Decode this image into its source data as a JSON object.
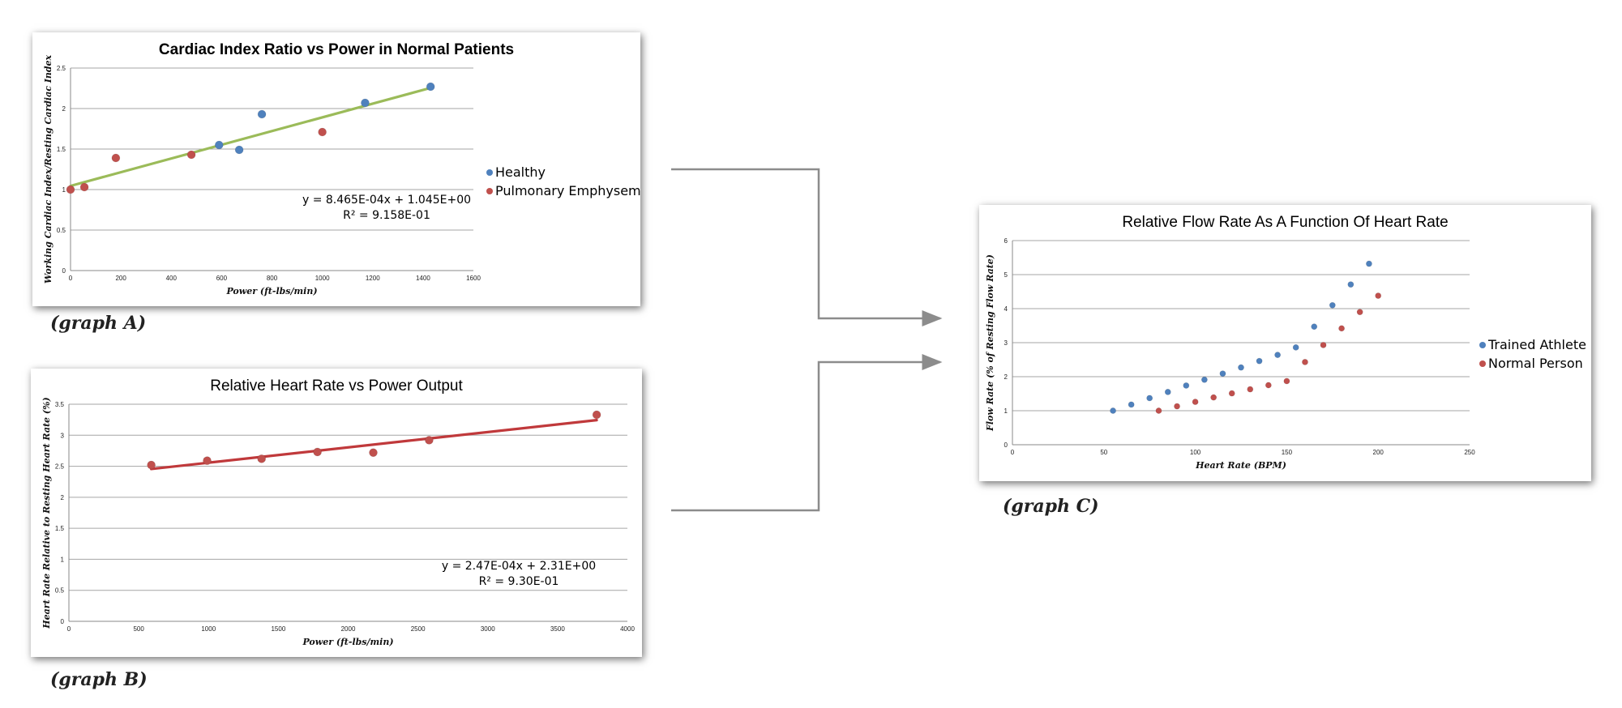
{
  "captions": {
    "a": "(graph A)",
    "b": "(graph B)",
    "c": "(graph C)"
  },
  "colors": {
    "blue": "#4f81bd",
    "red": "#c0504d",
    "green": "#9bbb59",
    "darkred": "#c0393b",
    "grid": "#a6a6a6",
    "arrow": "#8c8c8c"
  },
  "chart_data": [
    {
      "id": "graph-a",
      "type": "scatter",
      "title": "Cardiac Index Ratio vs Power in Normal Patients",
      "xlabel": "Power (ft-lbs/min)",
      "ylabel": "Working Cardiac Index/Resting Cardiac Index",
      "xlim": [
        0,
        1600
      ],
      "ylim": [
        0,
        2.5
      ],
      "xticks": [
        0,
        200,
        400,
        600,
        800,
        1000,
        1200,
        1400,
        1600
      ],
      "yticks": [
        0,
        0.5,
        1,
        1.5,
        2,
        2.5
      ],
      "grid": true,
      "legend": "right",
      "series": [
        {
          "name": "Healthy",
          "color": "#4f81bd",
          "x": [
            590,
            670,
            760,
            1170,
            1430
          ],
          "y": [
            1.55,
            1.49,
            1.93,
            2.07,
            2.27
          ]
        },
        {
          "name": "Pulmonary Emphysema",
          "color": "#c0504d",
          "x": [
            0,
            55,
            180,
            480,
            1000
          ],
          "y": [
            1.0,
            1.03,
            1.39,
            1.43,
            1.71
          ]
        }
      ],
      "trendline": {
        "color": "#9bbb59",
        "x": [
          0,
          1430
        ],
        "y": [
          1.045,
          2.255
        ]
      },
      "equation": [
        "y = 8.465E-04x + 1.045E+00",
        "R² = 9.158E-01"
      ]
    },
    {
      "id": "graph-b",
      "type": "scatter",
      "title": "Relative Heart Rate vs Power Output",
      "xlabel": "Power (ft-lbs/min)",
      "ylabel": "Heart Rate Relative to Resting Heart Rate (%)",
      "xlim": [
        0,
        4000
      ],
      "ylim": [
        0,
        3.5
      ],
      "xticks": [
        0,
        500,
        1000,
        1500,
        2000,
        2500,
        3000,
        3500,
        4000
      ],
      "yticks": [
        0,
        0.5,
        1,
        1.5,
        2,
        2.5,
        3,
        3.5
      ],
      "grid": true,
      "series": [
        {
          "name": "",
          "color": "#c0504d",
          "x": [
            590,
            990,
            1380,
            1780,
            2180,
            2580,
            3780
          ],
          "y": [
            2.52,
            2.59,
            2.62,
            2.73,
            2.72,
            2.92,
            3.33
          ]
        }
      ],
      "trendline": {
        "color": "#c0393b",
        "x": [
          590,
          3780
        ],
        "y": [
          2.456,
          3.244
        ]
      },
      "equation": [
        "y = 2.47E-04x + 2.31E+00",
        "R² = 9.30E-01"
      ]
    },
    {
      "id": "graph-c",
      "type": "scatter",
      "title": "Relative Flow Rate As A Function Of Heart Rate",
      "xlabel": "Heart Rate (BPM)",
      "ylabel": "Flow Rate (% of Resting Flow Rate)",
      "xlim": [
        0,
        250
      ],
      "ylim": [
        0,
        6
      ],
      "xticks": [
        0,
        50,
        100,
        150,
        200,
        250
      ],
      "yticks": [
        0,
        1,
        2,
        3,
        4,
        5,
        6
      ],
      "grid": true,
      "legend": "right",
      "series": [
        {
          "name": "Trained Athlete",
          "color": "#4f81bd",
          "x": [
            55,
            65,
            75,
            85,
            95,
            105,
            115,
            125,
            135,
            145,
            155,
            165,
            175,
            185,
            195
          ],
          "y": [
            1.0,
            1.18,
            1.37,
            1.55,
            1.74,
            1.91,
            2.09,
            2.27,
            2.46,
            2.64,
            2.86,
            3.47,
            4.1,
            4.71,
            5.32
          ]
        },
        {
          "name": "Normal Person",
          "color": "#c0504d",
          "x": [
            80,
            90,
            100,
            110,
            120,
            130,
            140,
            150,
            160,
            170,
            180,
            190,
            200
          ],
          "y": [
            1.0,
            1.13,
            1.26,
            1.39,
            1.51,
            1.63,
            1.75,
            1.87,
            2.43,
            2.93,
            3.42,
            3.9,
            4.38
          ]
        }
      ]
    }
  ]
}
